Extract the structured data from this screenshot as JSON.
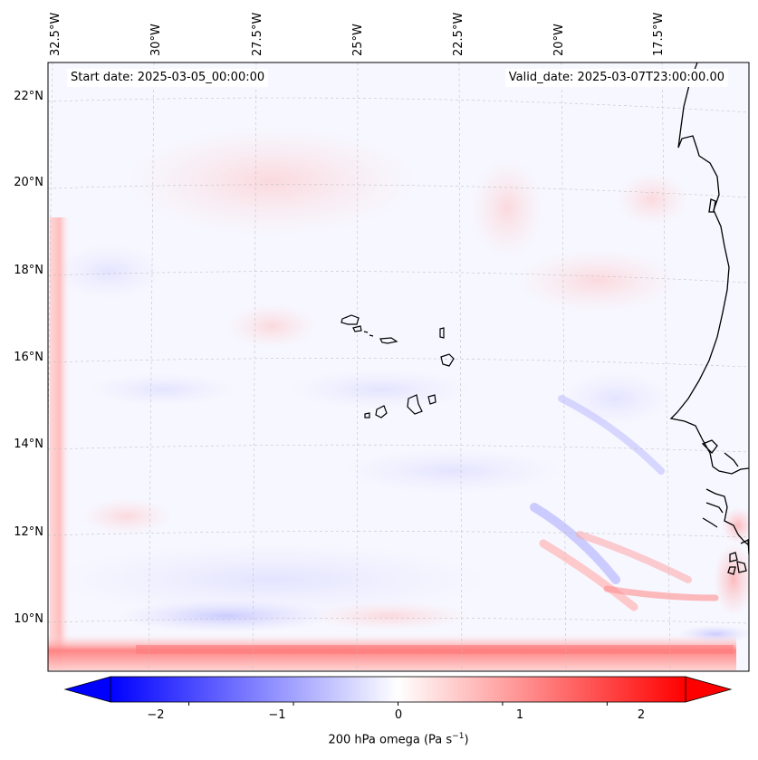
{
  "map": {
    "start_date": "Start date: 2025-03-05_00:00:00",
    "valid_date": "Valid_date: 2025-03-07T23:00:00.00",
    "lon_labels": [
      "32.5°W",
      "30°W",
      "27.5°W",
      "25°W",
      "22.5°W",
      "20°W",
      "17.5°W"
    ],
    "lat_labels": [
      "22°N",
      "20°N",
      "18°N",
      "16°N",
      "14°N",
      "12°N",
      "10°N"
    ],
    "features": {
      "coastline": "west-africa-coast",
      "islands": "cape-verde-islands"
    }
  },
  "colorbar": {
    "ticks": [
      "−2",
      "−1",
      "0",
      "1",
      "2"
    ],
    "tick_values": [
      -2,
      -1,
      0,
      1,
      2
    ],
    "range": [
      -2.75,
      2.75
    ],
    "label": "200 hPa omega (Pa s",
    "label_sup": "−1",
    "label_end": ")",
    "colors": {
      "negative": "#0000ff",
      "zero": "#ffffff",
      "positive": "#ff0000"
    }
  }
}
